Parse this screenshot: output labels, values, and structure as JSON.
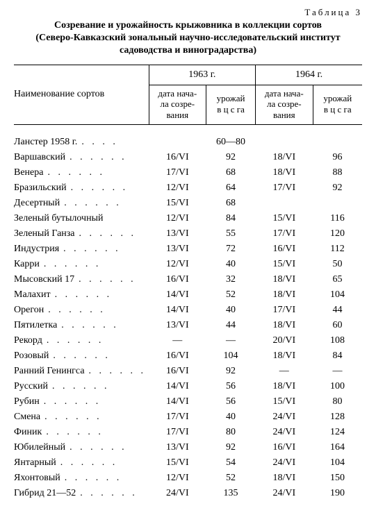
{
  "label": "Таблица 3",
  "title_lines": [
    "Созревание и урожайность крыжовника в коллекции сортов",
    "(Северо-Кавказский зональный научно-исследовательский институт",
    "садоводства и виноградарства)"
  ],
  "head": {
    "name": "Наименование сортов",
    "y1963": "1963 г.",
    "y1964": "1964 г.",
    "date": "дата нача-\nла созре-\nвания",
    "yield": "урожай\nв ц с га"
  },
  "span_row": {
    "name": "Ланстер 1958 г.",
    "value": "60—80"
  },
  "rows": [
    {
      "name": "Варшавский",
      "d63": "16/VI",
      "y63": "92",
      "d64": "18/VI",
      "y64": "96"
    },
    {
      "name": "Венера",
      "d63": "17/VI",
      "y63": "68",
      "d64": "18/VI",
      "y64": "88"
    },
    {
      "name": "Бразильский",
      "d63": "12/VI",
      "y63": "64",
      "d64": "17/VI",
      "y64": "92"
    },
    {
      "name": "Десертный",
      "d63": "15/VI",
      "y63": "68",
      "d64": "",
      "y64": ""
    },
    {
      "name": "Зеленый бутылочный",
      "d63": "12/VI",
      "y63": "84",
      "d64": "15/VI",
      "y64": "116"
    },
    {
      "name": "Зеленый Ганза",
      "d63": "13/VI",
      "y63": "55",
      "d64": "17/VI",
      "y64": "120"
    },
    {
      "name": "Индустрия",
      "d63": "13/VI",
      "y63": "72",
      "d64": "16/VI",
      "y64": "112"
    },
    {
      "name": "Карри",
      "d63": "12/VI",
      "y63": "40",
      "d64": "15/VI",
      "y64": "50"
    },
    {
      "name": "Мысовский 17",
      "d63": "16/VI",
      "y63": "32",
      "d64": "18/VI",
      "y64": "65"
    },
    {
      "name": "Малахит",
      "d63": "14/VI",
      "y63": "52",
      "d64": "18/VI",
      "y64": "104"
    },
    {
      "name": "Орегон",
      "d63": "14/VI",
      "y63": "40",
      "d64": "17/VI",
      "y64": "44"
    },
    {
      "name": "Пятилетка",
      "d63": "13/VI",
      "y63": "44",
      "d64": "18/VI",
      "y64": "60"
    },
    {
      "name": "Рекорд",
      "d63": "—",
      "y63": "—",
      "d64": "20/VI",
      "y64": "108"
    },
    {
      "name": "Розовый",
      "d63": "16/VI",
      "y63": "104",
      "d64": "18/VI",
      "y64": "84"
    },
    {
      "name": "Ранний Генингса",
      "d63": "16/VI",
      "y63": "92",
      "d64": "—",
      "y64": "—"
    },
    {
      "name": "Русский",
      "d63": "14/VI",
      "y63": "56",
      "d64": "18/VI",
      "y64": "100"
    },
    {
      "name": "Рубин",
      "d63": "14/VI",
      "y63": "56",
      "d64": "15/VI",
      "y64": "80"
    },
    {
      "name": "Смена",
      "d63": "17/VI",
      "y63": "40",
      "d64": "24/VI",
      "y64": "128"
    },
    {
      "name": "Финик",
      "d63": "17/VI",
      "y63": "80",
      "d64": "24/VI",
      "y64": "124"
    },
    {
      "name": "Юбилейный",
      "d63": "13/VI",
      "y63": "92",
      "d64": "16/VI",
      "y64": "164"
    },
    {
      "name": "Янтарный",
      "d63": "15/VI",
      "y63": "54",
      "d64": "24/VI",
      "y64": "104"
    },
    {
      "name": "Яхонтовый",
      "d63": "12/VI",
      "y63": "52",
      "d64": "18/VI",
      "y64": "150"
    },
    {
      "name": "Гибрид 21—52",
      "d63": "24/VI",
      "y63": "135",
      "d64": "24/VI",
      "y64": "190"
    }
  ]
}
